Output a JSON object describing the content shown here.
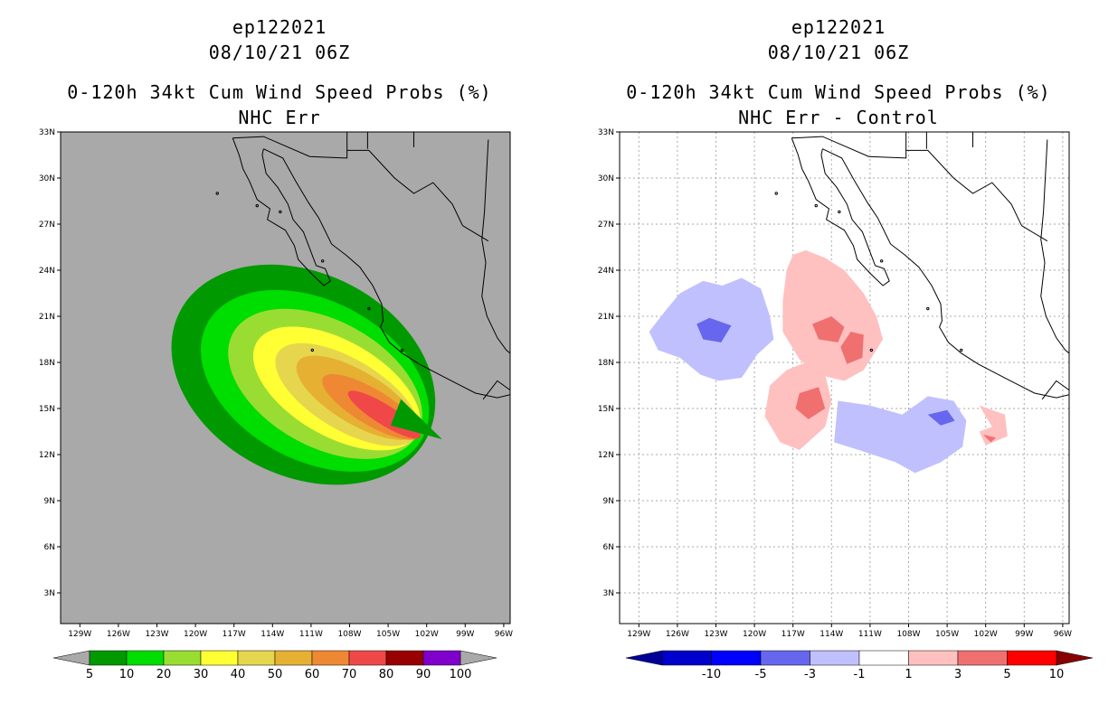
{
  "panels": [
    {
      "title_line1": "ep122021",
      "title_line2": "08/10/21 06Z",
      "title_line3": "0-120h 34kt Cum Wind Speed Probs (%)",
      "title_line4": "NHC Err"
    },
    {
      "title_line1": "ep122021",
      "title_line2": "08/10/21 06Z",
      "title_line3": "0-120h 34kt Cum Wind Speed Probs (%)",
      "title_line4": "NHC Err - Control"
    }
  ],
  "chart_data": [
    {
      "type": "heatmap",
      "title": "0-120h 34kt Cum Wind Speed Probs (%) NHC Err",
      "storm": "ep122021",
      "datetime": "08/10/21 06Z",
      "units": "%",
      "x_ticks": [
        "129W",
        "126W",
        "123W",
        "120W",
        "117W",
        "114W",
        "111W",
        "108W",
        "105W",
        "102W",
        "99W",
        "96W"
      ],
      "y_ticks": [
        "33N",
        "30N",
        "27N",
        "24N",
        "21N",
        "18N",
        "15N",
        "12N",
        "9N",
        "6N",
        "3N"
      ],
      "xlim": [
        "130.5W",
        "95.5W"
      ],
      "ylim": [
        "1N",
        "33N"
      ],
      "background_color": "#a9a9a9",
      "colorbar": {
        "labels": [
          "5",
          "10",
          "20",
          "30",
          "40",
          "50",
          "60",
          "70",
          "80",
          "90",
          "100"
        ],
        "colors": [
          "#009900",
          "#00dd00",
          "#99dd33",
          "#ffff33",
          "#e6d64d",
          "#e6b033",
          "#ee8833",
          "#f04848",
          "#990000",
          "#8000cc"
        ],
        "under_color": "#a9a9a9",
        "over_color": "#a9a9a9"
      },
      "contour_levels": [
        {
          "min": 5,
          "color": "#009900"
        },
        {
          "min": 10,
          "color": "#00dd00"
        },
        {
          "min": 20,
          "color": "#99dd33"
        },
        {
          "min": 30,
          "color": "#ffff33"
        },
        {
          "min": 40,
          "color": "#e6d64d"
        },
        {
          "min": 50,
          "color": "#e6b033"
        },
        {
          "min": 60,
          "color": "#ee8833"
        },
        {
          "min": 70,
          "color": "#f04848"
        }
      ],
      "peak_region": {
        "lat": "13.5N",
        "lon": "102W"
      }
    },
    {
      "type": "heatmap",
      "title": "0-120h 34kt Cum Wind Speed Probs (%) NHC Err - Control",
      "storm": "ep122021",
      "datetime": "08/10/21 06Z",
      "units": "%",
      "x_ticks": [
        "129W",
        "126W",
        "123W",
        "120W",
        "117W",
        "114W",
        "111W",
        "108W",
        "105W",
        "102W",
        "99W",
        "96W"
      ],
      "y_ticks": [
        "33N",
        "30N",
        "27N",
        "24N",
        "21N",
        "18N",
        "15N",
        "12N",
        "9N",
        "6N",
        "3N"
      ],
      "grid": true,
      "background_color": "#ffffff",
      "colorbar": {
        "labels": [
          "-10",
          "-5",
          "-3",
          "-1",
          "1",
          "3",
          "5",
          "10"
        ],
        "colors": [
          "#0000cc",
          "#0000ff",
          "#6666ee",
          "#c0c0ff",
          "#ffffff",
          "#ffc0c0",
          "#f07070",
          "#ff0000"
        ],
        "under_color": "#000099",
        "over_color": "#880000"
      },
      "positive_regions_color": "#ffc0c0",
      "positive_core_color": "#f07070",
      "negative_regions_color": "#c0c0ff",
      "negative_core_color": "#6666ee"
    }
  ]
}
